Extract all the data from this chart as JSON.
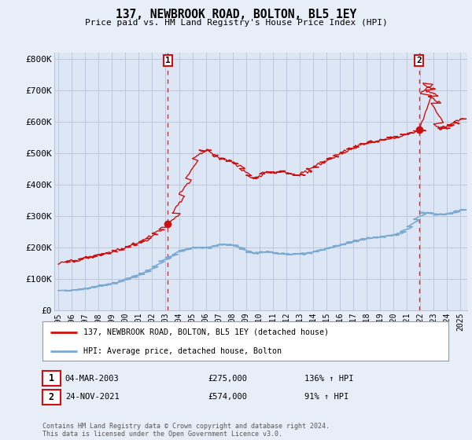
{
  "title": "137, NEWBROOK ROAD, BOLTON, BL5 1EY",
  "subtitle": "Price paid vs. HM Land Registry's House Price Index (HPI)",
  "ylabel_ticks": [
    "£0",
    "£100K",
    "£200K",
    "£300K",
    "£400K",
    "£500K",
    "£600K",
    "£700K",
    "£800K"
  ],
  "ytick_values": [
    0,
    100000,
    200000,
    300000,
    400000,
    500000,
    600000,
    700000,
    800000
  ],
  "ylim": [
    0,
    820000
  ],
  "xlim_start": 1994.7,
  "xlim_end": 2025.5,
  "background_color": "#e8eef8",
  "plot_bg_color": "#dce6f5",
  "grid_color": "#b8c8dc",
  "red_color": "#cc1111",
  "blue_color": "#7aaad0",
  "sale1_year": 2003.17,
  "sale1_price": 275000,
  "sale2_year": 2021.9,
  "sale2_price": 574000,
  "legend_line1": "137, NEWBROOK ROAD, BOLTON, BL5 1EY (detached house)",
  "legend_line2": "HPI: Average price, detached house, Bolton",
  "footer": "Contains HM Land Registry data © Crown copyright and database right 2024.\nThis data is licensed under the Open Government Licence v3.0."
}
